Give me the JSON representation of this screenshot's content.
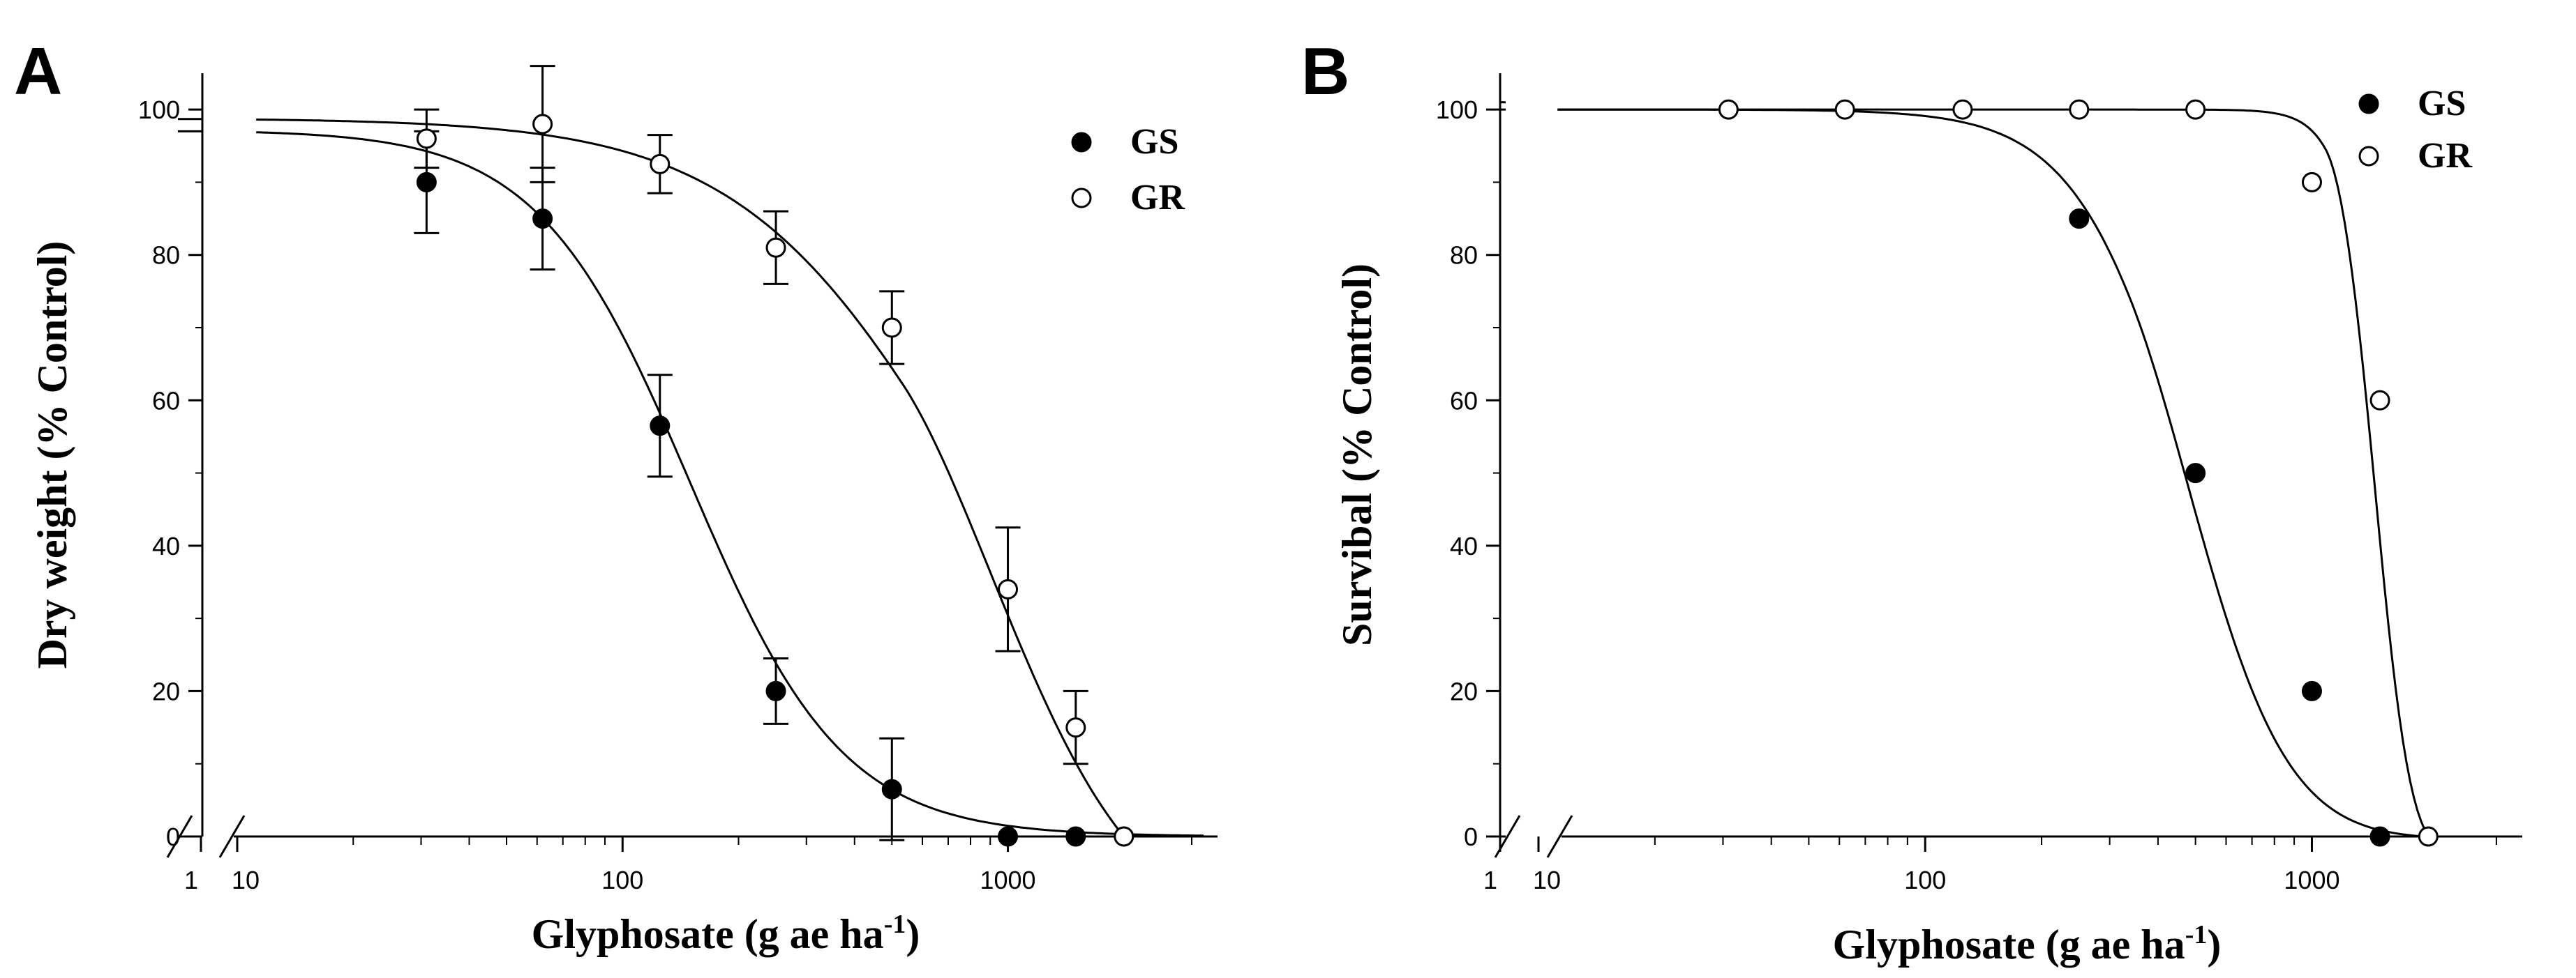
{
  "chart_data": [
    {
      "type": "scatter",
      "panel_label": "A",
      "xlabel": "Glyphosate (g ae ha",
      "xlabel_sup": "-1",
      "xlabel_close": ")",
      "ylabel": "Dry weight (% Control)",
      "x_scale": "log",
      "x_break": "1 | 10",
      "xlim": [
        10,
        3500
      ],
      "ylim": [
        0,
        105
      ],
      "x_ticks": [
        10,
        100,
        1000
      ],
      "x_tick_labels": [
        "10",
        "100",
        "1000"
      ],
      "x_break_labels": [
        "1"
      ],
      "y_ticks": [
        0,
        20,
        40,
        60,
        80,
        100
      ],
      "y_tick_labels": [
        "0",
        "20",
        "40",
        "60",
        "80",
        "100"
      ],
      "legend": "top-right",
      "series": [
        {
          "name": "GS",
          "marker": "filled-circle",
          "x": [
            31,
            62,
            125,
            250,
            500,
            1000,
            1500
          ],
          "y": [
            90,
            85,
            56.5,
            20,
            6.5,
            0,
            0
          ],
          "err": [
            7,
            7,
            7,
            4.5,
            7,
            0,
            0
          ],
          "control_y": 97,
          "fit": {
            "model": "log-logistic",
            "top": 97.2,
            "ed50": 150,
            "slope": 2.2
          }
        },
        {
          "name": "GR",
          "marker": "open-circle",
          "x": [
            31,
            62,
            125,
            250,
            500,
            1000,
            1500,
            2000
          ],
          "y": [
            96,
            98,
            92.5,
            81,
            70,
            34,
            15,
            0
          ],
          "err": [
            4,
            8,
            4,
            5,
            5,
            8.5,
            5,
            0
          ],
          "control_y": 98.7,
          "fit": {
            "model": "log-logistic",
            "top": 98.8,
            "ed50": 760,
            "slope": 1.5,
            "bottom_at": 2000
          }
        }
      ]
    },
    {
      "type": "scatter",
      "panel_label": "B",
      "xlabel": "Glyphosate (g ae ha",
      "xlabel_sup": "-1",
      "xlabel_close": ")",
      "ylabel": "Survibal (% Control)",
      "x_scale": "log",
      "x_break": "1 | 10",
      "xlim": [
        10,
        3500
      ],
      "ylim": [
        0,
        105
      ],
      "x_ticks": [
        10,
        100,
        1000
      ],
      "x_tick_labels": [
        "10",
        "100",
        "1000"
      ],
      "x_break_labels": [
        "1"
      ],
      "y_ticks": [
        0,
        20,
        40,
        60,
        80,
        100
      ],
      "y_tick_labels": [
        "0",
        "20",
        "40",
        "60",
        "80",
        "100"
      ],
      "legend": "top-right",
      "series": [
        {
          "name": "GS",
          "marker": "filled-circle",
          "x": [
            250,
            500,
            1000,
            1500
          ],
          "y": [
            85,
            50,
            20,
            0
          ],
          "control_y": 100,
          "fit": {
            "model": "log-logistic",
            "top": 100,
            "ed50": 480,
            "slope": 3.0,
            "bottom_at": 1950
          }
        },
        {
          "name": "GR",
          "marker": "open-circle",
          "x": [
            31,
            62,
            125,
            250,
            500,
            1000,
            1500,
            2000
          ],
          "y": [
            100,
            100,
            100,
            100,
            100,
            90,
            60,
            0
          ],
          "control_y": 101,
          "fit": {
            "model": "log-logistic",
            "top": 100,
            "ed50": 1550,
            "slope": 8.0,
            "bottom_at": 2000
          }
        }
      ]
    }
  ]
}
